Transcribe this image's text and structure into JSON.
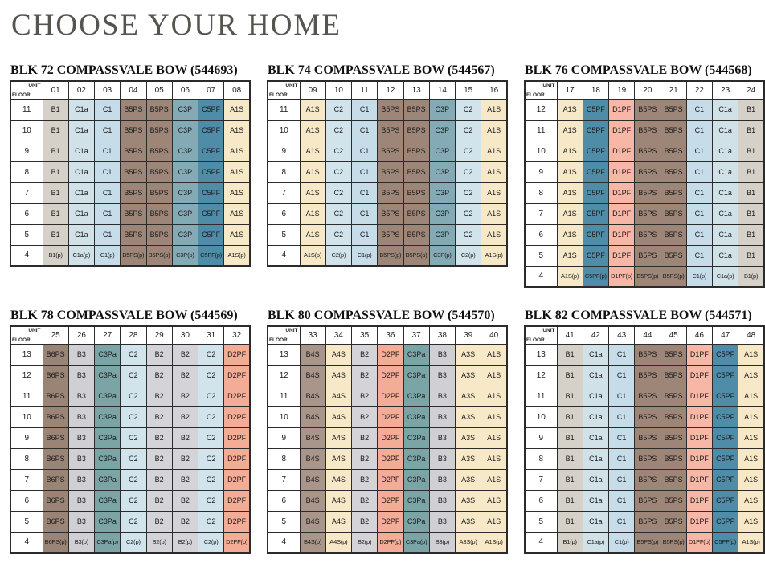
{
  "page_title": "CHOOSE YOUR HOME",
  "corner": {
    "unit_label": "UNIT",
    "floor_label": "FLOOR"
  },
  "unit_colors": {
    "A1S": "#f7e9c8",
    "A3S": "#f7e9c8",
    "A4S": "#f7e9c8",
    "B1": "#d5d1c9",
    "B2": "#d4d3d7",
    "B3": "#d0cfd4",
    "B4S": "#a9958a",
    "B5PS": "#9d8678",
    "B6PS": "#9a8476",
    "C1": "#c6dde9",
    "C1a": "#d0e1e8",
    "C2": "#d2e4eb",
    "C3P": "#83aab5",
    "C3Pa": "#7ba4a6",
    "C5PF": "#4e8ca7",
    "D1PF": "#f7b7a6",
    "D2PF": "#f3ad97"
  },
  "blocks": [
    {
      "id": "72",
      "title": "BLK 72 COMPASSVALE BOW (544693)",
      "units": [
        "01",
        "02",
        "03",
        "04",
        "05",
        "06",
        "07",
        "08"
      ],
      "floors": [
        {
          "floor": "11",
          "cells": [
            "B1",
            "C1a",
            "C1",
            "B5PS",
            "B5PS",
            "C3P",
            "C5PF",
            "A1S"
          ]
        },
        {
          "floor": "10",
          "cells": [
            "B1",
            "C1a",
            "C1",
            "B5PS",
            "B5PS",
            "C3P",
            "C5PF",
            "A1S"
          ]
        },
        {
          "floor": "9",
          "cells": [
            "B1",
            "C1a",
            "C1",
            "B5PS",
            "B5PS",
            "C3P",
            "C5PF",
            "A1S"
          ]
        },
        {
          "floor": "8",
          "cells": [
            "B1",
            "C1a",
            "C1",
            "B5PS",
            "B5PS",
            "C3P",
            "C5PF",
            "A1S"
          ]
        },
        {
          "floor": "7",
          "cells": [
            "B1",
            "C1a",
            "C1",
            "B5PS",
            "B5PS",
            "C3P",
            "C5PF",
            "A1S"
          ]
        },
        {
          "floor": "6",
          "cells": [
            "B1",
            "C1a",
            "C1",
            "B5PS",
            "B5PS",
            "C3P",
            "C5PF",
            "A1S"
          ]
        },
        {
          "floor": "5",
          "cells": [
            "B1",
            "C1a",
            "C1",
            "B5PS",
            "B5PS",
            "C3P",
            "C5PF",
            "A1S"
          ]
        },
        {
          "floor": "4",
          "cells": [
            "B1(p)",
            "C1a(p)",
            "C1(p)",
            "B5PS(p)",
            "B5PS(p)",
            "C3P(p)",
            "C5PF(p)",
            "A1S(p)"
          ]
        }
      ]
    },
    {
      "id": "74",
      "title": "BLK 74 COMPASSVALE BOW (544567)",
      "units": [
        "09",
        "10",
        "11",
        "12",
        "13",
        "14",
        "15",
        "16"
      ],
      "floors": [
        {
          "floor": "11",
          "cells": [
            "A1S",
            "C2",
            "C1",
            "B5PS",
            "B5PS",
            "C3P",
            "C2",
            "A1S"
          ]
        },
        {
          "floor": "10",
          "cells": [
            "A1S",
            "C2",
            "C1",
            "B5PS",
            "B5PS",
            "C3P",
            "C2",
            "A1S"
          ]
        },
        {
          "floor": "9",
          "cells": [
            "A1S",
            "C2",
            "C1",
            "B5PS",
            "B5PS",
            "C3P",
            "C2",
            "A1S"
          ]
        },
        {
          "floor": "8",
          "cells": [
            "A1S",
            "C2",
            "C1",
            "B5PS",
            "B5PS",
            "C3P",
            "C2",
            "A1S"
          ]
        },
        {
          "floor": "7",
          "cells": [
            "A1S",
            "C2",
            "C1",
            "B5PS",
            "B5PS",
            "C3P",
            "C2",
            "A1S"
          ]
        },
        {
          "floor": "6",
          "cells": [
            "A1S",
            "C2",
            "C1",
            "B5PS",
            "B5PS",
            "C3P",
            "C2",
            "A1S"
          ]
        },
        {
          "floor": "5",
          "cells": [
            "A1S",
            "C2",
            "C1",
            "B5PS",
            "B5PS",
            "C3P",
            "C2",
            "A1S"
          ]
        },
        {
          "floor": "4",
          "cells": [
            "A1S(p)",
            "C2(p)",
            "C1(p)",
            "B5PS(p)",
            "B5PS(p)",
            "C3P(p)",
            "C2(p)",
            "A1S(p)"
          ]
        }
      ]
    },
    {
      "id": "76",
      "title": "BLK 76 COMPASSVALE BOW (544568)",
      "units": [
        "17",
        "18",
        "19",
        "20",
        "21",
        "22",
        "23",
        "24"
      ],
      "floors": [
        {
          "floor": "12",
          "cells": [
            "A1S",
            "C5PF",
            "D1PF",
            "B5PS",
            "B5PS",
            "C1",
            "C1a",
            "B1"
          ]
        },
        {
          "floor": "11",
          "cells": [
            "A1S",
            "C5PF",
            "D1PF",
            "B5PS",
            "B5PS",
            "C1",
            "C1a",
            "B1"
          ]
        },
        {
          "floor": "10",
          "cells": [
            "A1S",
            "C5PF",
            "D1PF",
            "B5PS",
            "B5PS",
            "C1",
            "C1a",
            "B1"
          ]
        },
        {
          "floor": "9",
          "cells": [
            "A1S",
            "C5PF",
            "D1PF",
            "B5PS",
            "B5PS",
            "C1",
            "C1a",
            "B1"
          ]
        },
        {
          "floor": "8",
          "cells": [
            "A1S",
            "C5PF",
            "D1PF",
            "B5PS",
            "B5PS",
            "C1",
            "C1a",
            "B1"
          ]
        },
        {
          "floor": "7",
          "cells": [
            "A1S",
            "C5PF",
            "D1PF",
            "B5PS",
            "B5PS",
            "C1",
            "C1a",
            "B1"
          ]
        },
        {
          "floor": "6",
          "cells": [
            "A1S",
            "C5PF",
            "D1PF",
            "B5PS",
            "B5PS",
            "C1",
            "C1a",
            "B1"
          ]
        },
        {
          "floor": "5",
          "cells": [
            "A1S",
            "C5PF",
            "D1PF",
            "B5PS",
            "B5PS",
            "C1",
            "C1a",
            "B1"
          ]
        },
        {
          "floor": "4",
          "cells": [
            "A1S(p)",
            "C5PF(p)",
            "D1PF(p)",
            "B5PS(p)",
            "B5PS(p)",
            "C1(p)",
            "C1a(p)",
            "B1(p)"
          ]
        }
      ]
    },
    {
      "id": "78",
      "title": "BLK 78 COMPASSVALE BOW (544569)",
      "units": [
        "25",
        "26",
        "27",
        "28",
        "29",
        "30",
        "31",
        "32"
      ],
      "floors": [
        {
          "floor": "13",
          "cells": [
            "B6PS",
            "B3",
            "C3Pa",
            "C2",
            "B2",
            "B2",
            "C2",
            "D2PF"
          ]
        },
        {
          "floor": "12",
          "cells": [
            "B6PS",
            "B3",
            "C3Pa",
            "C2",
            "B2",
            "B2",
            "C2",
            "D2PF"
          ]
        },
        {
          "floor": "11",
          "cells": [
            "B6PS",
            "B3",
            "C3Pa",
            "C2",
            "B2",
            "B2",
            "C2",
            "D2PF"
          ]
        },
        {
          "floor": "10",
          "cells": [
            "B6PS",
            "B3",
            "C3Pa",
            "C2",
            "B2",
            "B2",
            "C2",
            "D2PF"
          ]
        },
        {
          "floor": "9",
          "cells": [
            "B6PS",
            "B3",
            "C3Pa",
            "C2",
            "B2",
            "B2",
            "C2",
            "D2PF"
          ]
        },
        {
          "floor": "8",
          "cells": [
            "B6PS",
            "B3",
            "C3Pa",
            "C2",
            "B2",
            "B2",
            "C2",
            "D2PF"
          ]
        },
        {
          "floor": "7",
          "cells": [
            "B6PS",
            "B3",
            "C3Pa",
            "C2",
            "B2",
            "B2",
            "C2",
            "D2PF"
          ]
        },
        {
          "floor": "6",
          "cells": [
            "B6PS",
            "B3",
            "C3Pa",
            "C2",
            "B2",
            "B2",
            "C2",
            "D2PF"
          ]
        },
        {
          "floor": "5",
          "cells": [
            "B6PS",
            "B3",
            "C3Pa",
            "C2",
            "B2",
            "B2",
            "C2",
            "D2PF"
          ]
        },
        {
          "floor": "4",
          "cells": [
            "B6PS(p)",
            "B3(p)",
            "C3Pa(p)",
            "C2(p)",
            "B2(p)",
            "B2(p)",
            "C2(p)",
            "D2PF(p)"
          ]
        }
      ]
    },
    {
      "id": "80",
      "title": "BLK 80 COMPASSVALE BOW (544570)",
      "units": [
        "33",
        "34",
        "35",
        "36",
        "37",
        "38",
        "39",
        "40"
      ],
      "floors": [
        {
          "floor": "13",
          "cells": [
            "B4S",
            "A4S",
            "B2",
            "D2PF",
            "C3Pa",
            "B3",
            "A3S",
            "A1S"
          ]
        },
        {
          "floor": "12",
          "cells": [
            "B4S",
            "A4S",
            "B2",
            "D2PF",
            "C3Pa",
            "B3",
            "A3S",
            "A1S"
          ]
        },
        {
          "floor": "11",
          "cells": [
            "B4S",
            "A4S",
            "B2",
            "D2PF",
            "C3Pa",
            "B3",
            "A3S",
            "A1S"
          ]
        },
        {
          "floor": "10",
          "cells": [
            "B4S",
            "A4S",
            "B2",
            "D2PF",
            "C3Pa",
            "B3",
            "A3S",
            "A1S"
          ]
        },
        {
          "floor": "9",
          "cells": [
            "B4S",
            "A4S",
            "B2",
            "D2PF",
            "C3Pa",
            "B3",
            "A3S",
            "A1S"
          ]
        },
        {
          "floor": "8",
          "cells": [
            "B4S",
            "A4S",
            "B2",
            "D2PF",
            "C3Pa",
            "B3",
            "A3S",
            "A1S"
          ]
        },
        {
          "floor": "7",
          "cells": [
            "B4S",
            "A4S",
            "B2",
            "D2PF",
            "C3Pa",
            "B3",
            "A3S",
            "A1S"
          ]
        },
        {
          "floor": "6",
          "cells": [
            "B4S",
            "A4S",
            "B2",
            "D2PF",
            "C3Pa",
            "B3",
            "A3S",
            "A1S"
          ]
        },
        {
          "floor": "5",
          "cells": [
            "B4S",
            "A4S",
            "B2",
            "D2PF",
            "C3Pa",
            "B3",
            "A3S",
            "A1S"
          ]
        },
        {
          "floor": "4",
          "cells": [
            "B4S(p)",
            "A4S(p)",
            "B2(p)",
            "D2PF(p)",
            "C3Pa(p)",
            "B3(p)",
            "A3S(p)",
            "A1S(p)"
          ]
        }
      ]
    },
    {
      "id": "82",
      "title": "BLK 82 COMPASSVALE BOW (544571)",
      "units": [
        "41",
        "42",
        "43",
        "44",
        "45",
        "46",
        "47",
        "48"
      ],
      "floors": [
        {
          "floor": "13",
          "cells": [
            "B1",
            "C1a",
            "C1",
            "B5PS",
            "B5PS",
            "D1PF",
            "C5PF",
            "A1S"
          ]
        },
        {
          "floor": "12",
          "cells": [
            "B1",
            "C1a",
            "C1",
            "B5PS",
            "B5PS",
            "D1PF",
            "C5PF",
            "A1S"
          ]
        },
        {
          "floor": "11",
          "cells": [
            "B1",
            "C1a",
            "C1",
            "B5PS",
            "B5PS",
            "D1PF",
            "C5PF",
            "A1S"
          ]
        },
        {
          "floor": "10",
          "cells": [
            "B1",
            "C1a",
            "C1",
            "B5PS",
            "B5PS",
            "D1PF",
            "C5PF",
            "A1S"
          ]
        },
        {
          "floor": "9",
          "cells": [
            "B1",
            "C1a",
            "C1",
            "B5PS",
            "B5PS",
            "D1PF",
            "C5PF",
            "A1S"
          ]
        },
        {
          "floor": "8",
          "cells": [
            "B1",
            "C1a",
            "C1",
            "B5PS",
            "B5PS",
            "D1PF",
            "C5PF",
            "A1S"
          ]
        },
        {
          "floor": "7",
          "cells": [
            "B1",
            "C1a",
            "C1",
            "B5PS",
            "B5PS",
            "D1PF",
            "C5PF",
            "A1S"
          ]
        },
        {
          "floor": "6",
          "cells": [
            "B1",
            "C1a",
            "C1",
            "B5PS",
            "B5PS",
            "D1PF",
            "C5PF",
            "A1S"
          ]
        },
        {
          "floor": "5",
          "cells": [
            "B1",
            "C1a",
            "C1",
            "B5PS",
            "B5PS",
            "D1PF",
            "C5PF",
            "A1S"
          ]
        },
        {
          "floor": "4",
          "cells": [
            "B1(p)",
            "C1a(p)",
            "C1(p)",
            "B5PS(p)",
            "B5PS(p)",
            "D1PF(p)",
            "C5PF(p)",
            "A1S(p)"
          ]
        }
      ]
    }
  ]
}
